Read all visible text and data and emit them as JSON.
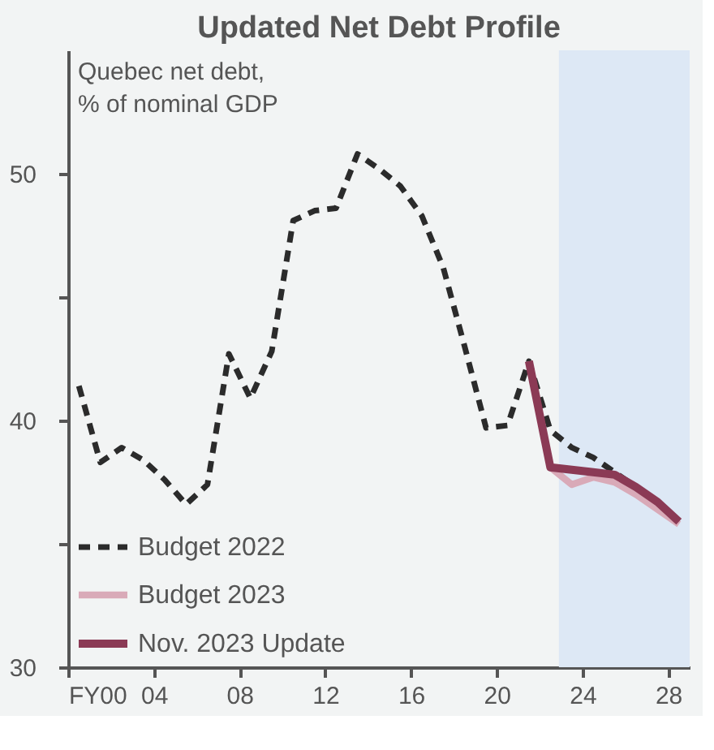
{
  "chart_data": {
    "type": "line",
    "title": "Updated Net Debt Profile",
    "ylabel": "Quebec net debt,\n% of nominal GDP",
    "xlim": [
      0,
      29
    ],
    "xticks": [
      {
        "value": 0,
        "label": "FY00"
      },
      {
        "value": 4,
        "label": "04"
      },
      {
        "value": 8,
        "label": "08"
      },
      {
        "value": 12,
        "label": "12"
      },
      {
        "value": 16,
        "label": "16"
      },
      {
        "value": 20,
        "label": "20"
      },
      {
        "value": 24,
        "label": "24"
      },
      {
        "value": 28,
        "label": "28"
      }
    ],
    "ylim": [
      30,
      55
    ],
    "yticks": [
      30,
      {
        "value": 35,
        "label": null
      },
      40,
      {
        "value": 45,
        "label": null
      },
      50
    ],
    "grid": false,
    "legend": "bottom left",
    "bands": [
      {
        "axis": "x",
        "from": 22.9,
        "to": 29,
        "color": "#dde8f5"
      }
    ],
    "series": [
      {
        "name": "Budget 2022",
        "color": "#2b2b2b",
        "line_style": "dashed",
        "x": [
          0.5,
          1.5,
          2.5,
          3.5,
          4.5,
          5.5,
          6.5,
          7.5,
          8.5,
          9.5,
          10.5,
          11.5,
          12.5,
          13.5,
          14.5,
          15.5,
          16.5,
          17.5,
          18.5,
          19.5,
          20.5,
          21.5,
          22.5,
          23.5,
          24.5,
          25.5,
          26.5,
          27.5,
          28.5
        ],
        "values": [
          41.4,
          38.3,
          38.9,
          38.4,
          37.6,
          36.6,
          37.4,
          42.7,
          40.9,
          42.8,
          48.1,
          48.5,
          48.6,
          50.8,
          50.2,
          49.5,
          48.3,
          46.2,
          43.0,
          39.7,
          39.8,
          42.4,
          39.6,
          38.9,
          38.5,
          37.9,
          37.3,
          36.7,
          35.9
        ]
      },
      {
        "name": "Budget 2023",
        "color": "#d9aab8",
        "line_style": "solid",
        "x": [
          21.5,
          22.5,
          23.5,
          24.5,
          25.5,
          26.5,
          27.5,
          28.5
        ],
        "values": [
          42.4,
          38.1,
          37.4,
          37.7,
          37.5,
          37.0,
          36.4,
          35.8
        ]
      },
      {
        "name": "Nov. 2023 Update",
        "color": "#8b3a55",
        "line_style": "solid",
        "x": [
          21.5,
          22.5,
          23.5,
          24.5,
          25.5,
          26.5,
          27.5,
          28.5
        ],
        "values": [
          42.4,
          38.1,
          38.0,
          37.9,
          37.8,
          37.3,
          36.7,
          35.9
        ]
      }
    ]
  }
}
